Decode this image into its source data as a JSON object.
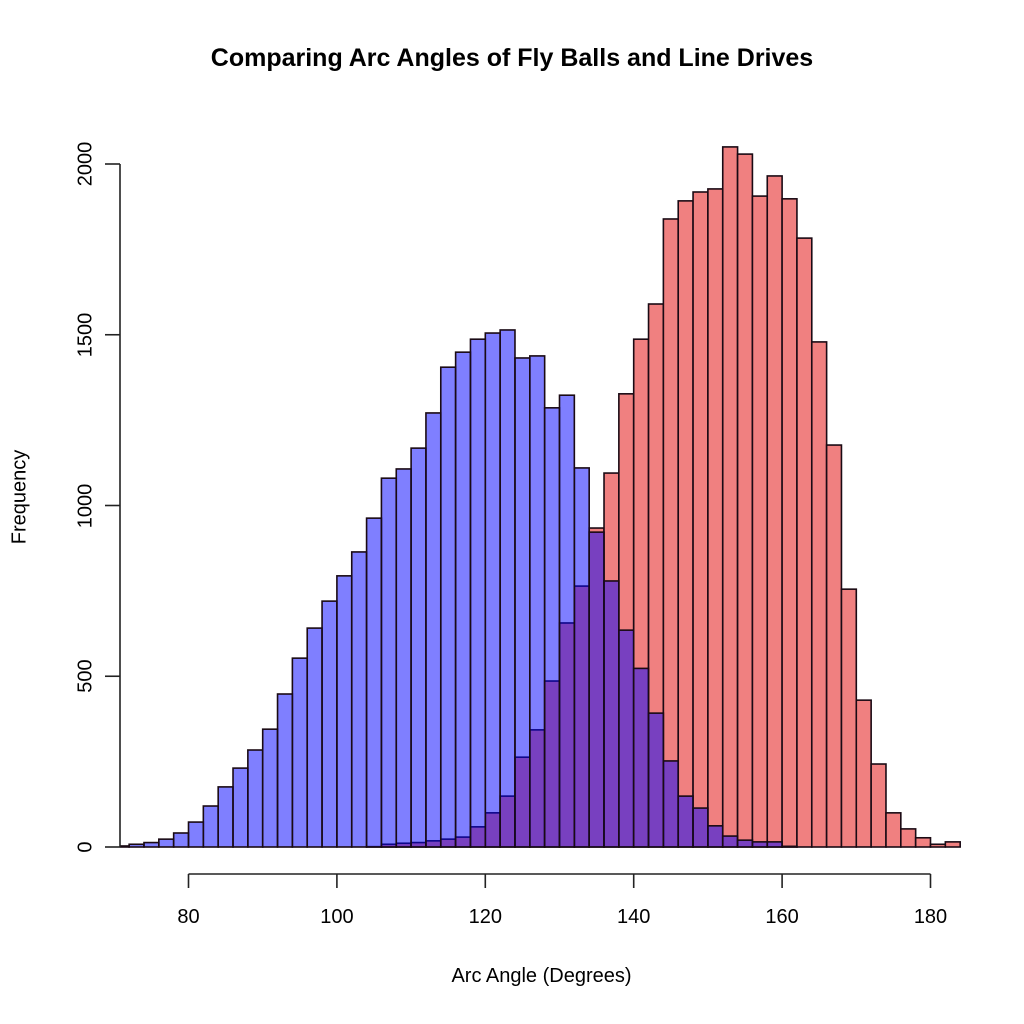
{
  "chart_data": {
    "type": "bar",
    "subtype": "overlaid-histogram",
    "title": "Comparing Arc Angles of Fly Balls and Line Drives",
    "xlabel": "Arc Angle (Degrees)",
    "ylabel": "Frequency",
    "xlim": [
      71,
      184
    ],
    "ylim": [
      0,
      2050
    ],
    "x_ticks": [
      80,
      100,
      120,
      140,
      160,
      180
    ],
    "y_ticks": [
      0,
      500,
      1000,
      1500,
      2000
    ],
    "bin_width": 2,
    "bin_starts": [
      70,
      72,
      74,
      76,
      78,
      80,
      82,
      84,
      86,
      88,
      90,
      92,
      94,
      96,
      98,
      100,
      102,
      104,
      106,
      108,
      110,
      112,
      114,
      116,
      118,
      120,
      122,
      124,
      126,
      128,
      130,
      132,
      134,
      136,
      138,
      140,
      142,
      144,
      146,
      148,
      150,
      152,
      154,
      156,
      158,
      160,
      162,
      164,
      166,
      168,
      170,
      172,
      174,
      176,
      178,
      180,
      182
    ],
    "grid": false,
    "legend": null,
    "series": [
      {
        "name": "Line Drives",
        "color": "#8080FF",
        "fill": "rgba(0,0,255,0.5)",
        "values": [
          3,
          8,
          13,
          23,
          41,
          73,
          120,
          176,
          231,
          284,
          345,
          448,
          553,
          641,
          720,
          794,
          864,
          963,
          1080,
          1107,
          1168,
          1271,
          1405,
          1449,
          1487,
          1505,
          1514,
          1432,
          1438,
          1286,
          1323,
          1110,
          922,
          779,
          635,
          523,
          392,
          252,
          149,
          114,
          62,
          32,
          20,
          15,
          15,
          2,
          0,
          0,
          0,
          0,
          0,
          0,
          0,
          0,
          0,
          0,
          0
        ]
      },
      {
        "name": "Fly Balls",
        "color": "#F08080",
        "fill": "#F08080",
        "values": [
          0,
          0,
          0,
          0,
          0,
          0,
          0,
          0,
          0,
          0,
          0,
          0,
          0,
          0,
          0,
          0,
          0,
          1,
          8,
          11,
          13,
          18,
          23,
          29,
          59,
          100,
          149,
          263,
          343,
          486,
          656,
          764,
          934,
          1095,
          1327,
          1487,
          1590,
          1839,
          1892,
          1918,
          1927,
          2050,
          2029,
          1906,
          1965,
          1898,
          1783,
          1479,
          1177,
          755,
          430,
          243,
          100,
          53,
          27,
          8,
          15
        ]
      }
    ],
    "overlap_color": "#7840C0"
  },
  "labels": {
    "title": "Comparing Arc Angles of Fly Balls and Line Drives",
    "xlabel": "Arc Angle (Degrees)",
    "ylabel": "Frequency",
    "xticks": [
      "80",
      "100",
      "120",
      "140",
      "160",
      "180"
    ],
    "yticks": [
      "0",
      "500",
      "1000",
      "1500",
      "2000"
    ]
  }
}
